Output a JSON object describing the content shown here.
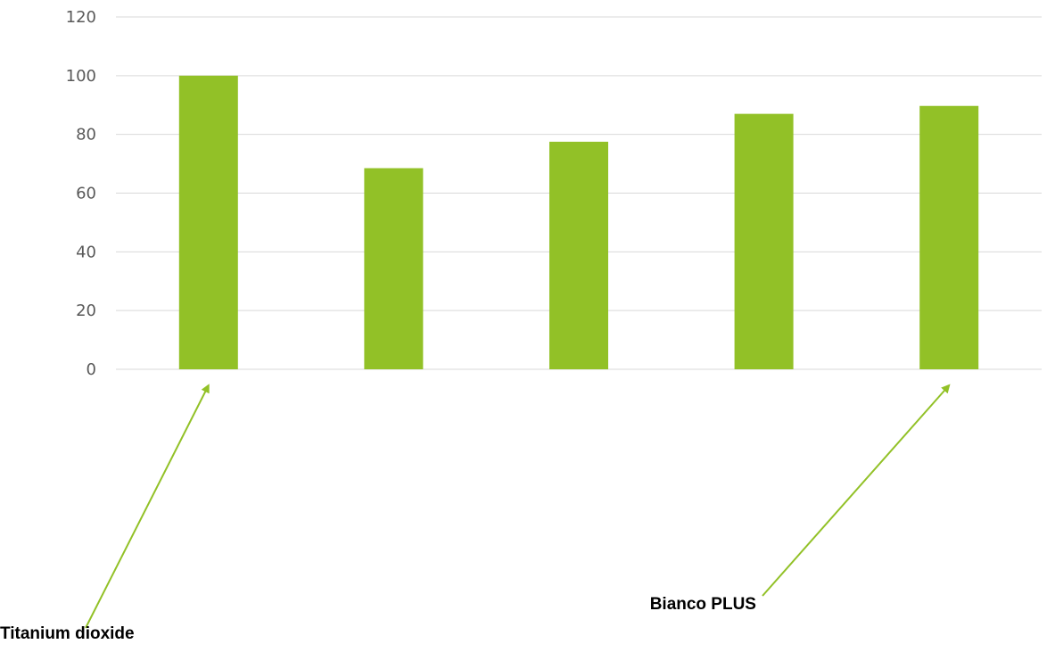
{
  "chart_data": {
    "type": "bar",
    "categories": [
      "",
      "",
      "",
      "",
      ""
    ],
    "values": [
      100,
      68.5,
      77.5,
      87,
      89.7
    ],
    "ylim": [
      0,
      120
    ],
    "yticks": [
      0,
      20,
      40,
      60,
      80,
      100,
      120
    ],
    "grid": true,
    "legend": "none",
    "bar_color": "#92c127",
    "grid_color": "#d9d9d9",
    "annotation_color": "#92c127",
    "annotations": [
      {
        "text": "Titanium dioxide",
        "target_index": 0
      },
      {
        "text": "Bianco PLUS",
        "target_index": 4
      }
    ]
  }
}
